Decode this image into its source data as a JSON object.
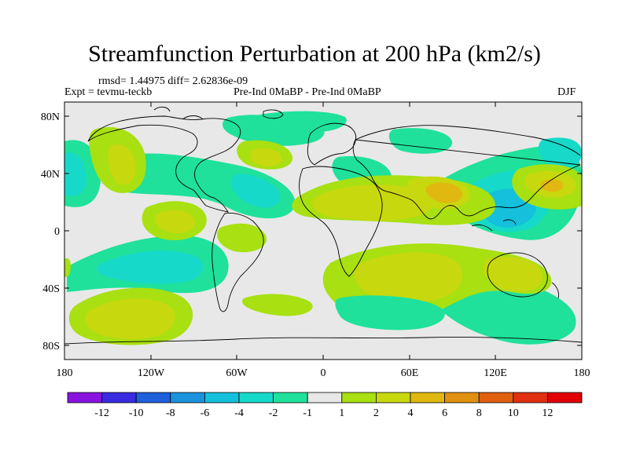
{
  "title": "Streamfunction Perturbation at 200 hPa (km2/s)",
  "stats_text": "rmsd= 1.44975 diff= 2.62836e-09",
  "experiment_text": "Expt = tevmu-teckb",
  "comparison_text": "Pre-Ind 0MaBP - Pre-Ind 0MaBP",
  "season_text": "DJF",
  "lat_labels": [
    "80N",
    "40N",
    "0",
    "40S",
    "80S"
  ],
  "lon_labels": [
    "180",
    "120W",
    "60W",
    "0",
    "60E",
    "120E",
    "180"
  ],
  "colorbar": {
    "labels": [
      "-12",
      "-10",
      "-8",
      "-6",
      "-4",
      "-2",
      "-1",
      "1",
      "2",
      "4",
      "6",
      "8",
      "10",
      "12"
    ],
    "colors": [
      "#8a13e0",
      "#3a2be0",
      "#1f60dc",
      "#1b93dc",
      "#14c0dc",
      "#16d9c9",
      "#1fe19b",
      "#e8e8e8",
      "#a8e012",
      "#c8d80e",
      "#e0b810",
      "#e09010",
      "#e06010",
      "#e03010",
      "#e00000"
    ]
  },
  "colors": {
    "neutral": "#e8e8e8",
    "pos2": "#a8e012",
    "pos4": "#c8d80e",
    "pos6": "#e0b810",
    "neg1": "#1fe19b",
    "neg2": "#16d9c9",
    "neg4": "#14c0dc"
  }
}
